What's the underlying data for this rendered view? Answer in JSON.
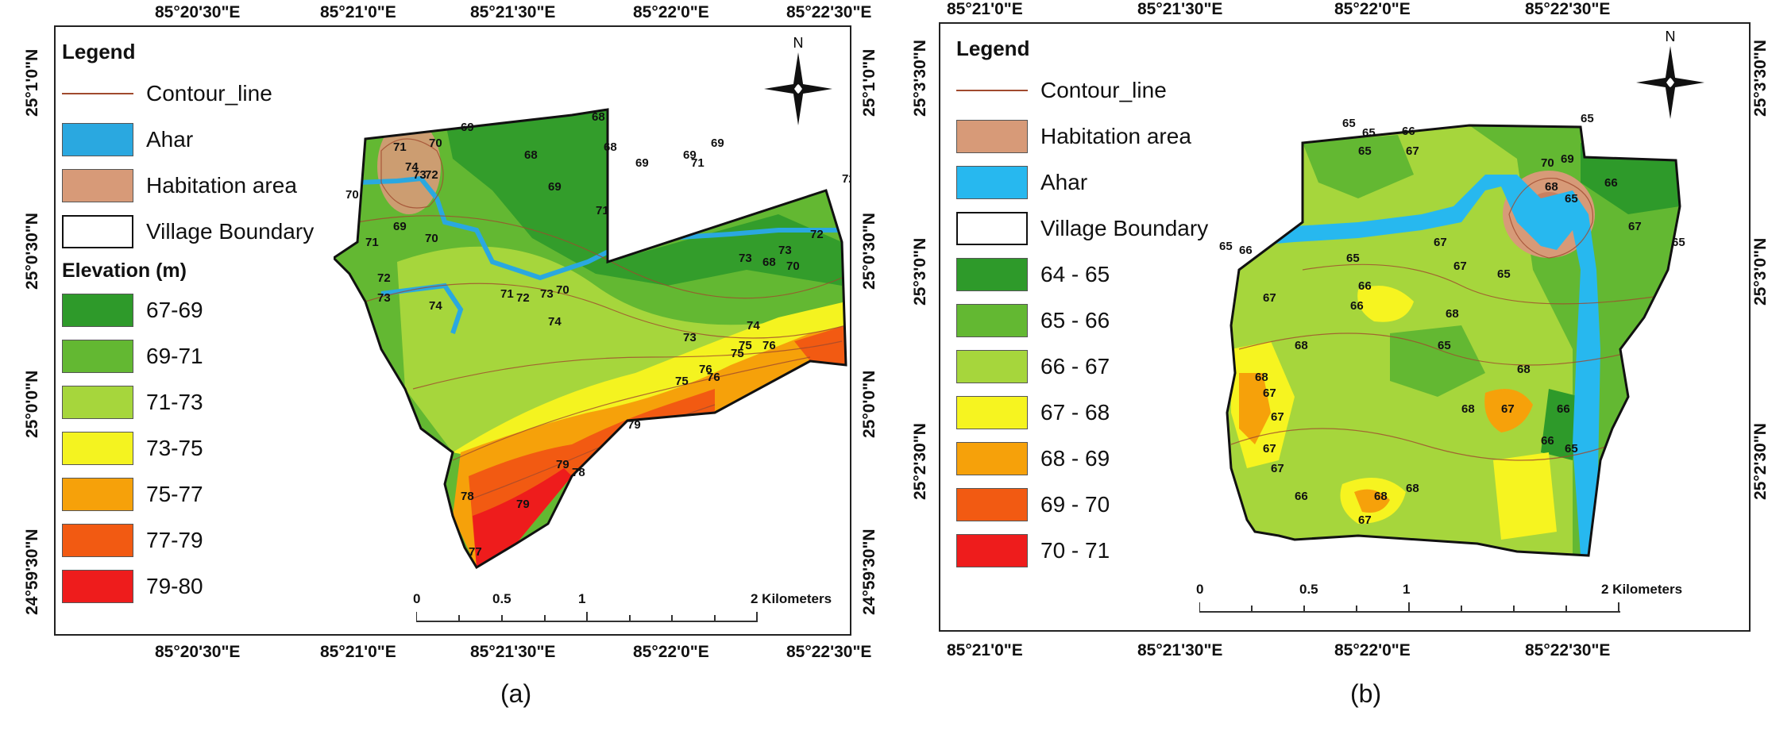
{
  "panel_a": {
    "caption": "(a)",
    "top_ticks": [
      "85°20'30\"E",
      "85°21'0\"E",
      "85°21'30\"E",
      "85°22'0\"E",
      "85°22'30\"E"
    ],
    "bottom_ticks": [
      "85°20'30\"E",
      "85°21'0\"E",
      "85°21'30\"E",
      "85°22'0\"E",
      "85°22'30\"E"
    ],
    "left_ticks": [
      "25°1'0\"N",
      "25°0'30\"N",
      "25°0'0\"N",
      "24°59'30\"N"
    ],
    "right_ticks": [
      "25°1'0\"N",
      "25°0'30\"N",
      "25°0'0\"N",
      "24°59'30\"N"
    ],
    "legend": {
      "title": "Legend",
      "items": [
        {
          "label": "Contour_line",
          "type": "line",
          "color": "#a04a2e"
        },
        {
          "label": "Ahar",
          "type": "fill",
          "color": "#2aa8e0"
        },
        {
          "label": "Habitation area",
          "type": "fill",
          "color": "#d79a78"
        },
        {
          "label": "Village Boundary",
          "type": "outline",
          "color": "#ffffff"
        }
      ],
      "elevation_title": "Elevation (m)",
      "classes": [
        {
          "label": "67-69",
          "color": "#2e9a2a"
        },
        {
          "label": "69-71",
          "color": "#63b832"
        },
        {
          "label": "71-73",
          "color": "#a6d63c"
        },
        {
          "label": "73-75",
          "color": "#f4f320"
        },
        {
          "label": "75-77",
          "color": "#f6a10a"
        },
        {
          "label": "77-79",
          "color": "#f25a12"
        },
        {
          "label": "79-80",
          "color": "#ee1c1c"
        }
      ]
    },
    "north": "N",
    "scale": {
      "labels": [
        "0",
        "0.5",
        "1",
        "2 Kilometers"
      ]
    },
    "contour_labels": [
      "69",
      "70",
      "71",
      "68",
      "69",
      "68",
      "74",
      "73",
      "72",
      "70",
      "69",
      "71",
      "70",
      "72",
      "73",
      "74",
      "75",
      "76",
      "70",
      "71",
      "72",
      "73",
      "74",
      "73",
      "75",
      "76",
      "77",
      "78",
      "79",
      "79",
      "69",
      "69",
      "71",
      "68",
      "70",
      "71",
      "72",
      "73",
      "74",
      "73",
      "76",
      "75",
      "78",
      "79",
      "72",
      "68",
      "69"
    ]
  },
  "panel_b": {
    "caption": "(b)",
    "top_ticks": [
      "85°21'0\"E",
      "85°21'30\"E",
      "85°22'0\"E",
      "85°22'30\"E"
    ],
    "bottom_ticks": [
      "85°21'0\"E",
      "85°21'30\"E",
      "85°22'0\"E",
      "85°22'30\"E"
    ],
    "left_ticks": [
      "25°3'30\"N",
      "25°3'0\"N",
      "25°2'30\"N"
    ],
    "right_ticks": [
      "25°3'30\"N",
      "25°3'0\"N",
      "25°2'30\"N"
    ],
    "legend": {
      "title": "Legend",
      "items": [
        {
          "label": "Contour_line",
          "type": "line",
          "color": "#a04a2e"
        },
        {
          "label": "Habitation area",
          "type": "fill",
          "color": "#d79a78"
        },
        {
          "label": "Ahar",
          "type": "fill",
          "color": "#27b8ef"
        },
        {
          "label": "Village Boundary",
          "type": "outline",
          "color": "#ffffff"
        }
      ],
      "classes": [
        {
          "label": "64 - 65",
          "color": "#2e9a2a"
        },
        {
          "label": "65 - 66",
          "color": "#63b832"
        },
        {
          "label": "66 - 67",
          "color": "#a6d63c"
        },
        {
          "label": "67 - 68",
          "color": "#f6f420"
        },
        {
          "label": "68 - 69",
          "color": "#f6a10a"
        },
        {
          "label": "69 - 70",
          "color": "#f25a12"
        },
        {
          "label": "70 - 71",
          "color": "#ee1c1c"
        }
      ]
    },
    "north": "N",
    "scale": {
      "labels": [
        "0",
        "0.5",
        "1",
        "2 Kilometers"
      ]
    },
    "contour_labels": [
      "65",
      "65",
      "65",
      "66",
      "65",
      "67",
      "70",
      "69",
      "68",
      "65",
      "66",
      "67",
      "65",
      "65",
      "66",
      "65",
      "67",
      "67",
      "65",
      "67",
      "66",
      "68",
      "68",
      "68",
      "67",
      "67",
      "66",
      "65",
      "68",
      "68",
      "67",
      "66",
      "65",
      "66",
      "67",
      "67",
      "68",
      "68",
      "67",
      "66"
    ]
  }
}
